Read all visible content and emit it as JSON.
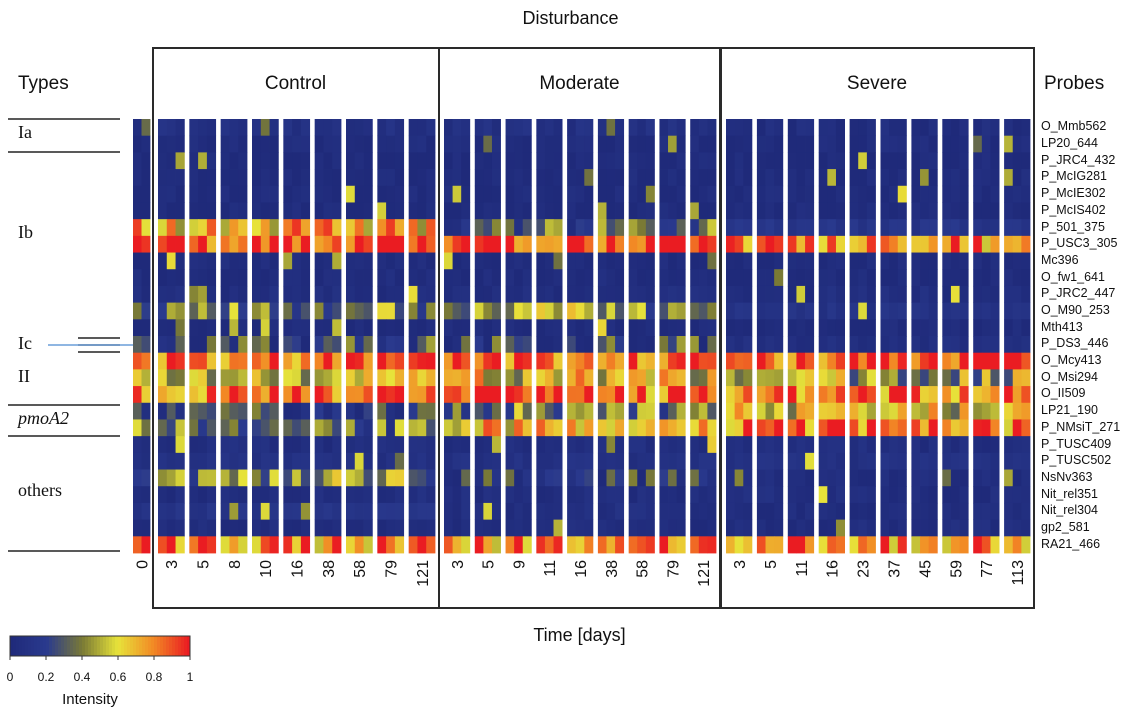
{
  "chart_data": {
    "type": "heatmap",
    "title": "Disturbance",
    "xlabel": "Time [days]",
    "row_header": "Types",
    "probe_header": "Probes",
    "colorbar": {
      "label": "Intensity",
      "range": [
        0,
        1
      ],
      "ticks": [
        "0",
        "0.2",
        "0.4",
        "0.6",
        "0.8",
        "1"
      ],
      "colors": [
        "#1f2a7a",
        "#2a3a8e",
        "#7a7a35",
        "#e7e33a",
        "#f28a25",
        "#ea1c22"
      ]
    },
    "panels": [
      {
        "name": "Control",
        "tick_labels": [
          "3",
          "5",
          "8",
          "10",
          "16",
          "38",
          "58",
          "79",
          "121"
        ]
      },
      {
        "name": "Moderate",
        "tick_labels": [
          "3",
          "5",
          "9",
          "11",
          "16",
          "38",
          "58",
          "79",
          "121"
        ]
      },
      {
        "name": "Severe",
        "tick_labels": [
          "3",
          "5",
          "11",
          "16",
          "23",
          "37",
          "45",
          "59",
          "77",
          "113"
        ]
      }
    ],
    "baseline_tick": "0",
    "probes": [
      "O_Mmb562",
      "LP20_644",
      "P_JRC4_432",
      "P_McIG281",
      "P_McIE302",
      "P_McIS402",
      "P_501_375",
      "P_USC3_305",
      "Mc396",
      "O_fw1_641",
      "P_JRC2_447",
      "O_M90_253",
      "Mth413",
      "P_DS3_446",
      "O_Mcy413",
      "O_Msi294",
      "O_II509",
      "LP21_190",
      "P_NMsiT_271",
      "P_TUSC409",
      "P_TUSC502",
      "NsNv363",
      "Nit_rel351",
      "Nit_rel304",
      "gp2_581",
      "RA21_466"
    ],
    "types": [
      {
        "label": "Ia",
        "italic": false
      },
      {
        "label": "Ib",
        "italic": false
      },
      {
        "label": "Ic",
        "italic": false
      },
      {
        "label": "II",
        "italic": false
      },
      {
        "label": "pmoA2",
        "italic": true
      },
      {
        "label": "others",
        "italic": false
      }
    ],
    "row_profile": [
      0.08,
      0.03,
      0.02,
      0.02,
      0.02,
      0.02,
      0.7,
      0.95,
      0.02,
      0.03,
      0.05,
      0.35,
      0.02,
      0.2,
      0.9,
      0.6,
      0.85,
      0.3,
      0.55,
      0.05,
      0.08,
      0.4,
      0.05,
      0.12,
      0.04,
      0.8
    ],
    "panel_modifiers": [
      [
        1.0,
        1.0,
        1.0,
        1.0,
        1.0,
        1.0,
        1.0,
        1.0,
        1.0,
        1.0,
        1.0,
        1.0,
        1.0,
        1.0,
        1.0,
        1.0,
        1.0,
        0.6,
        0.6,
        1.0,
        1.0,
        1.0,
        1.0,
        1.0,
        1.0,
        1.0
      ],
      [
        1.0,
        1.0,
        1.0,
        1.0,
        1.0,
        1.0,
        0.4,
        1.0,
        1.0,
        1.0,
        1.0,
        1.2,
        1.0,
        1.0,
        1.0,
        1.0,
        1.0,
        1.2,
        1.2,
        1.0,
        1.0,
        0.4,
        1.0,
        0.5,
        1.0,
        1.0
      ],
      [
        0.5,
        1.0,
        1.0,
        1.0,
        1.0,
        1.0,
        0.2,
        0.85,
        1.0,
        0.5,
        1.0,
        0.3,
        1.0,
        0.3,
        1.0,
        0.8,
        1.0,
        1.8,
        1.5,
        1.0,
        1.0,
        0.1,
        1.0,
        0.3,
        1.0,
        1.0
      ]
    ]
  }
}
